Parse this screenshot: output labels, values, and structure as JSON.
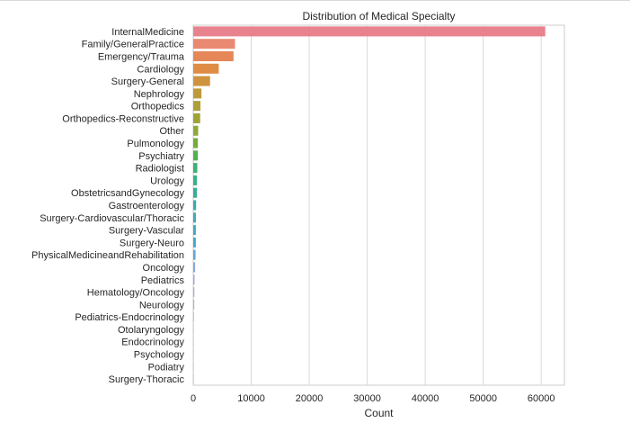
{
  "chart_data": {
    "type": "bar",
    "orientation": "horizontal",
    "title": "Distribution of Medical Specialty",
    "xlabel": "Count",
    "ylabel": "",
    "xlim": [
      0,
      64000
    ],
    "xticks": [
      0,
      10000,
      20000,
      30000,
      40000,
      50000,
      60000
    ],
    "grid": "vertical",
    "categories": [
      "InternalMedicine",
      "Family/GeneralPractice",
      "Emergency/Trauma",
      "Cardiology",
      "Surgery-General",
      "Nephrology",
      "Orthopedics",
      "Orthopedics-Reconstructive",
      "Other",
      "Pulmonology",
      "Psychiatry",
      "Radiologist",
      "Urology",
      "ObstetricsandGynecology",
      "Gastroenterology",
      "Surgery-Cardiovascular/Thoracic",
      "Surgery-Vascular",
      "Surgery-Neuro",
      "PhysicalMedicineandRehabilitation",
      "Oncology",
      "Pediatrics",
      "Hematology/Oncology",
      "Neurology",
      "Pediatrics-Endocrinology",
      "Otolaryngology",
      "Endocrinology",
      "Psychology",
      "Podiatry",
      "Surgery-Thoracic"
    ],
    "values": [
      60700,
      7200,
      6950,
      4400,
      2900,
      1420,
      1250,
      1200,
      850,
      800,
      800,
      700,
      650,
      650,
      500,
      460,
      450,
      450,
      400,
      330,
      230,
      200,
      180,
      130,
      90,
      70,
      60,
      50,
      40
    ],
    "colors": [
      "#e8828f",
      "#e98972",
      "#e6875a",
      "#df8c44",
      "#cf9340",
      "#be9a3b",
      "#ae9f38",
      "#9fa337",
      "#8fa838",
      "#75ad3b",
      "#4fb34f",
      "#3cb275",
      "#3ab088",
      "#39ae97",
      "#3aadaa",
      "#3cacb5",
      "#3eaac1",
      "#40a8ce",
      "#62a7db",
      "#8ba7e0",
      "#a4a6e4",
      "#b5a6e6",
      "#c2a6e6",
      "#cea6e4",
      "#d9a6e0",
      "#e3a6da",
      "#e5a6cf",
      "#e6a6c3",
      "#e7a7b6"
    ]
  }
}
